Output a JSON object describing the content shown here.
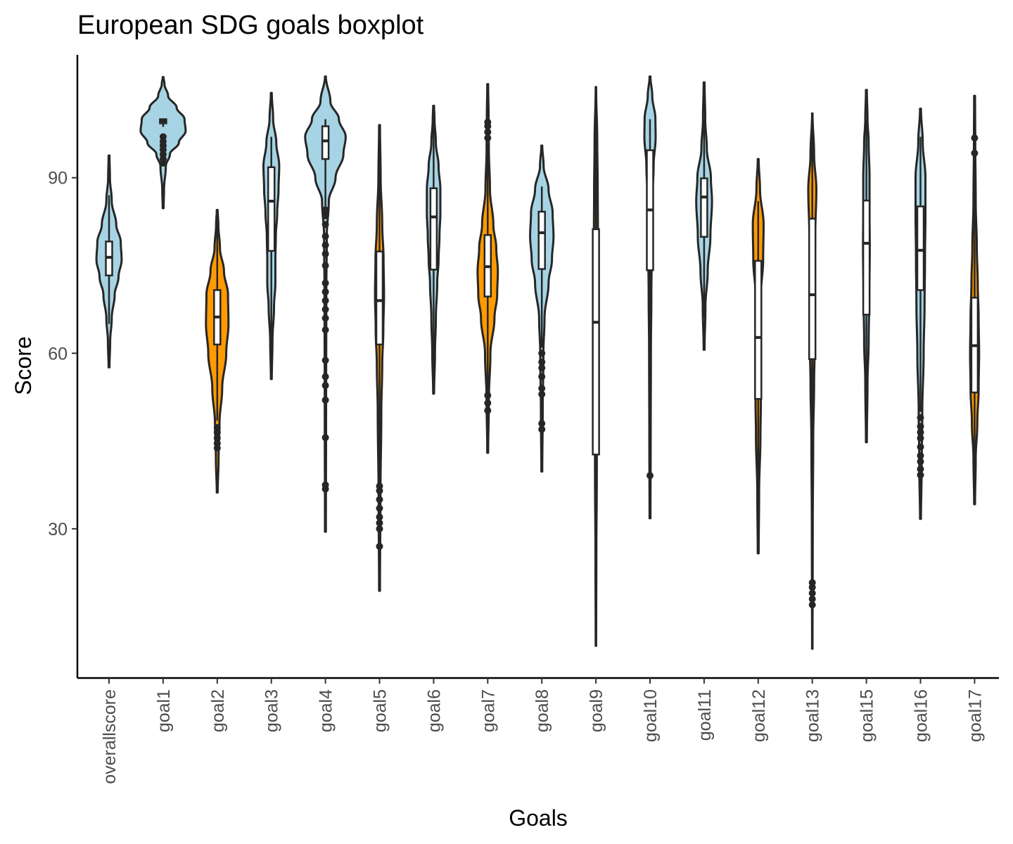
{
  "chart_data": {
    "type": "violin",
    "title": "European SDG goals boxplot",
    "xlabel": "Goals",
    "ylabel": "Score",
    "y_ticks": [
      30,
      60,
      90
    ],
    "ylim": [
      4.5,
      111
    ],
    "grid": false,
    "legend": "none",
    "colors": {
      "lightblue": "#a6d4e4",
      "orange": "#ff9a00",
      "outline": "#262626",
      "box_fill": "#ffffff"
    },
    "categories": [
      "overallscore",
      "goal1",
      "goal2",
      "goal3",
      "goal4",
      "goal5",
      "goal6",
      "goal7",
      "goal8",
      "goal9",
      "goal10",
      "goal11",
      "goal12",
      "goal13",
      "goal15",
      "goal16",
      "goal17"
    ],
    "series": [
      {
        "category": "overallscore",
        "color": "lightblue",
        "min": 57.6,
        "max": 93.8,
        "q1": 73.3,
        "median": 76.4,
        "q3": 79.1,
        "whisker_low": 65,
        "whisker_high": 87,
        "outliers": [],
        "density": [
          [
            57.6,
            0.02
          ],
          [
            62,
            0.05
          ],
          [
            66,
            0.12
          ],
          [
            70,
            0.25
          ],
          [
            73,
            0.42
          ],
          [
            76,
            0.56
          ],
          [
            79,
            0.52
          ],
          [
            82,
            0.32
          ],
          [
            86,
            0.12
          ],
          [
            90,
            0.04
          ],
          [
            93.8,
            0.02
          ]
        ]
      },
      {
        "category": "goal1",
        "color": "lightblue",
        "min": 84.8,
        "max": 107.2,
        "q1": 99.3,
        "median": 99.7,
        "q3": 100,
        "whisker_low": 98.7,
        "whisker_high": 100,
        "outliers": [
          92.5,
          93.2,
          94,
          94.8,
          95.5,
          96.2,
          97
        ],
        "density": [
          [
            84.8,
            0.02
          ],
          [
            88,
            0.04
          ],
          [
            92,
            0.12
          ],
          [
            94,
            0.3
          ],
          [
            96,
            0.7
          ],
          [
            98,
            1.0
          ],
          [
            100,
            0.95
          ],
          [
            102,
            0.6
          ],
          [
            104,
            0.22
          ],
          [
            106,
            0.06
          ],
          [
            107.2,
            0.02
          ]
        ]
      },
      {
        "category": "goal2",
        "color": "orange",
        "min": 36.2,
        "max": 84.5,
        "q1": 61.5,
        "median": 66.2,
        "q3": 70.8,
        "whisker_low": 48.5,
        "whisker_high": 84,
        "outliers": [
          43.8,
          44.6,
          45.5,
          46.5,
          47.3
        ],
        "density": [
          [
            36.2,
            0.02
          ],
          [
            42,
            0.06
          ],
          [
            48,
            0.1
          ],
          [
            54,
            0.22
          ],
          [
            60,
            0.4
          ],
          [
            65,
            0.5
          ],
          [
            70,
            0.48
          ],
          [
            74,
            0.3
          ],
          [
            78,
            0.12
          ],
          [
            82,
            0.05
          ],
          [
            84.5,
            0.02
          ]
        ]
      },
      {
        "category": "goal3",
        "color": "lightblue",
        "min": 55.6,
        "max": 104.5,
        "q1": 77.5,
        "median": 86,
        "q3": 91.8,
        "whisker_low": 56,
        "whisker_high": 97,
        "outliers": [],
        "density": [
          [
            55.6,
            0.02
          ],
          [
            62,
            0.05
          ],
          [
            68,
            0.12
          ],
          [
            72,
            0.18
          ],
          [
            76,
            0.18
          ],
          [
            80,
            0.2
          ],
          [
            84,
            0.26
          ],
          [
            88,
            0.32
          ],
          [
            92,
            0.35
          ],
          [
            96,
            0.22
          ],
          [
            100,
            0.08
          ],
          [
            104.5,
            0.02
          ]
        ]
      },
      {
        "category": "goal4",
        "color": "lightblue",
        "min": 29.5,
        "max": 107.3,
        "q1": 93.2,
        "median": 96.3,
        "q3": 98.8,
        "whisker_low": 85,
        "whisker_high": 100,
        "outliers": [
          36.8,
          37.5,
          45.6,
          52,
          54.5,
          56,
          58.8,
          64,
          66,
          67.5,
          69,
          70.5,
          72,
          75,
          77,
          78.5,
          80,
          82,
          83.5,
          84.5
        ],
        "density": [
          [
            29.5,
            0.02
          ],
          [
            50,
            0.03
          ],
          [
            70,
            0.04
          ],
          [
            80,
            0.06
          ],
          [
            86,
            0.15
          ],
          [
            90,
            0.45
          ],
          [
            94,
            0.8
          ],
          [
            97,
            0.9
          ],
          [
            100,
            0.6
          ],
          [
            103,
            0.22
          ],
          [
            107.3,
            0.02
          ]
        ]
      },
      {
        "category": "goal5",
        "color": "orange",
        "min": 19.4,
        "max": 99,
        "q1": 61.5,
        "median": 69,
        "q3": 77.4,
        "whisker_low": 38,
        "whisker_high": 99,
        "outliers": [
          27,
          30,
          31,
          32,
          33.5,
          35,
          36.5,
          37.3
        ],
        "density": [
          [
            19.4,
            0.02
          ],
          [
            35,
            0.04
          ],
          [
            50,
            0.08
          ],
          [
            58,
            0.12
          ],
          [
            64,
            0.17
          ],
          [
            70,
            0.2
          ],
          [
            76,
            0.18
          ],
          [
            82,
            0.12
          ],
          [
            90,
            0.05
          ],
          [
            99,
            0.02
          ]
        ]
      },
      {
        "category": "goal6",
        "color": "lightblue",
        "min": 53.1,
        "max": 102.3,
        "q1": 74.3,
        "median": 83.3,
        "q3": 88.2,
        "whisker_low": 53.1,
        "whisker_high": 101,
        "outliers": [],
        "density": [
          [
            53.1,
            0.02
          ],
          [
            60,
            0.06
          ],
          [
            66,
            0.1
          ],
          [
            72,
            0.16
          ],
          [
            76,
            0.22
          ],
          [
            80,
            0.26
          ],
          [
            84,
            0.3
          ],
          [
            88,
            0.3
          ],
          [
            92,
            0.22
          ],
          [
            96,
            0.1
          ],
          [
            100,
            0.04
          ],
          [
            102.3,
            0.02
          ]
        ]
      },
      {
        "category": "goal7",
        "color": "orange",
        "min": 43,
        "max": 106,
        "q1": 69.7,
        "median": 74.8,
        "q3": 80.2,
        "whisker_low": 53.5,
        "whisker_high": 96,
        "outliers": [
          50.2,
          51.5,
          52.8,
          96.8,
          97.8,
          98.8,
          99.5
        ],
        "density": [
          [
            43,
            0.02
          ],
          [
            52,
            0.05
          ],
          [
            60,
            0.12
          ],
          [
            66,
            0.3
          ],
          [
            70,
            0.42
          ],
          [
            74,
            0.45
          ],
          [
            78,
            0.38
          ],
          [
            82,
            0.25
          ],
          [
            88,
            0.1
          ],
          [
            95,
            0.05
          ],
          [
            100,
            0.04
          ],
          [
            106,
            0.02
          ]
        ]
      },
      {
        "category": "goal8",
        "color": "lightblue",
        "min": 39.8,
        "max": 95.5,
        "q1": 74.4,
        "median": 80.6,
        "q3": 84.2,
        "whisker_low": 61,
        "whisker_high": 88.5,
        "outliers": [
          47,
          48,
          53,
          54,
          56,
          57.5,
          58.5,
          60
        ],
        "density": [
          [
            39.8,
            0.02
          ],
          [
            50,
            0.04
          ],
          [
            60,
            0.07
          ],
          [
            66,
            0.12
          ],
          [
            72,
            0.3
          ],
          [
            76,
            0.45
          ],
          [
            80,
            0.52
          ],
          [
            84,
            0.48
          ],
          [
            88,
            0.3
          ],
          [
            92,
            0.08
          ],
          [
            95.5,
            0.02
          ]
        ]
      },
      {
        "category": "goal9",
        "color": "orange",
        "min": 10,
        "max": 105.5,
        "q1": 42.7,
        "median": 65.3,
        "q3": 81.2,
        "whisker_low": 10,
        "whisker_high": 105.5,
        "outliers": [],
        "density": [
          [
            10,
            0.01
          ],
          [
            25,
            0.02
          ],
          [
            40,
            0.04
          ],
          [
            55,
            0.06
          ],
          [
            70,
            0.08
          ],
          [
            80,
            0.09
          ],
          [
            88,
            0.08
          ],
          [
            96,
            0.06
          ],
          [
            105.5,
            0.01
          ]
        ]
      },
      {
        "category": "goal10",
        "color": "lightblue",
        "min": 31.8,
        "max": 107.3,
        "q1": 74.2,
        "median": 84.5,
        "q3": 94.7,
        "whisker_low": 45,
        "whisker_high": 100,
        "outliers": [
          39.1
        ],
        "density": [
          [
            31.8,
            0.02
          ],
          [
            45,
            0.03
          ],
          [
            60,
            0.04
          ],
          [
            70,
            0.06
          ],
          [
            78,
            0.08
          ],
          [
            86,
            0.1
          ],
          [
            92,
            0.16
          ],
          [
            97,
            0.25
          ],
          [
            100,
            0.24
          ],
          [
            104,
            0.1
          ],
          [
            107.3,
            0.02
          ]
        ]
      },
      {
        "category": "goal11",
        "color": "lightblue",
        "min": 60.6,
        "max": 106.3,
        "q1": 79.9,
        "median": 86.7,
        "q3": 89.9,
        "whisker_low": 66,
        "whisker_high": 100,
        "outliers": [],
        "density": [
          [
            60.6,
            0.02
          ],
          [
            68,
            0.06
          ],
          [
            74,
            0.16
          ],
          [
            80,
            0.28
          ],
          [
            86,
            0.35
          ],
          [
            90,
            0.3
          ],
          [
            95,
            0.12
          ],
          [
            100,
            0.05
          ],
          [
            106.3,
            0.02
          ]
        ]
      },
      {
        "category": "goal12",
        "color": "orange",
        "min": 25.8,
        "max": 93.2,
        "q1": 52.2,
        "median": 62.7,
        "q3": 75.8,
        "whisker_low": 27,
        "whisker_high": 86,
        "outliers": [],
        "density": [
          [
            25.8,
            0.02
          ],
          [
            36,
            0.04
          ],
          [
            46,
            0.1
          ],
          [
            52,
            0.12
          ],
          [
            58,
            0.07
          ],
          [
            64,
            0.07
          ],
          [
            70,
            0.12
          ],
          [
            76,
            0.22
          ],
          [
            82,
            0.24
          ],
          [
            88,
            0.08
          ],
          [
            93.2,
            0.02
          ]
        ]
      },
      {
        "category": "goal13",
        "color": "orange",
        "min": 9.5,
        "max": 101,
        "q1": 59,
        "median": 70,
        "q3": 83,
        "whisker_low": 22,
        "whisker_high": 101,
        "outliers": [
          17,
          18,
          19,
          20,
          20.8
        ],
        "density": [
          [
            9.5,
            0.01
          ],
          [
            30,
            0.02
          ],
          [
            45,
            0.04
          ],
          [
            55,
            0.08
          ],
          [
            60,
            0.1
          ],
          [
            66,
            0.09
          ],
          [
            72,
            0.1
          ],
          [
            80,
            0.13
          ],
          [
            88,
            0.18
          ],
          [
            94,
            0.08
          ],
          [
            101,
            0.01
          ]
        ]
      },
      {
        "category": "goal15",
        "color": "lightblue",
        "min": 44.8,
        "max": 105,
        "q1": 66.6,
        "median": 78.8,
        "q3": 86.1,
        "whisker_low": 50,
        "whisker_high": 100,
        "outliers": [],
        "density": [
          [
            44.8,
            0.02
          ],
          [
            55,
            0.05
          ],
          [
            62,
            0.1
          ],
          [
            70,
            0.13
          ],
          [
            78,
            0.15
          ],
          [
            84,
            0.14
          ],
          [
            90,
            0.14
          ],
          [
            96,
            0.1
          ],
          [
            100,
            0.05
          ],
          [
            105,
            0.02
          ]
        ]
      },
      {
        "category": "goal16",
        "color": "lightblue",
        "min": 31.7,
        "max": 101.8,
        "q1": 70.8,
        "median": 77.6,
        "q3": 85.1,
        "whisker_low": 50,
        "whisker_high": 97,
        "outliers": [
          39.2,
          40.2,
          41.5,
          42.5,
          44,
          45.5,
          46.5,
          47.5,
          49
        ],
        "density": [
          [
            31.7,
            0.02
          ],
          [
            40,
            0.05
          ],
          [
            50,
            0.08
          ],
          [
            60,
            0.14
          ],
          [
            68,
            0.18
          ],
          [
            76,
            0.2
          ],
          [
            84,
            0.22
          ],
          [
            90,
            0.22
          ],
          [
            96,
            0.1
          ],
          [
            101.8,
            0.02
          ]
        ]
      },
      {
        "category": "goal17",
        "color": "orange",
        "min": 34.2,
        "max": 104,
        "q1": 53.3,
        "median": 61.3,
        "q3": 69.5,
        "whisker_low": 37,
        "whisker_high": 92,
        "outliers": [
          94.2,
          96.8
        ],
        "density": [
          [
            34.2,
            0.02
          ],
          [
            42,
            0.05
          ],
          [
            48,
            0.12
          ],
          [
            54,
            0.18
          ],
          [
            60,
            0.2
          ],
          [
            66,
            0.18
          ],
          [
            72,
            0.14
          ],
          [
            78,
            0.1
          ],
          [
            86,
            0.05
          ],
          [
            96,
            0.03
          ],
          [
            104,
            0.02
          ]
        ]
      }
    ]
  }
}
